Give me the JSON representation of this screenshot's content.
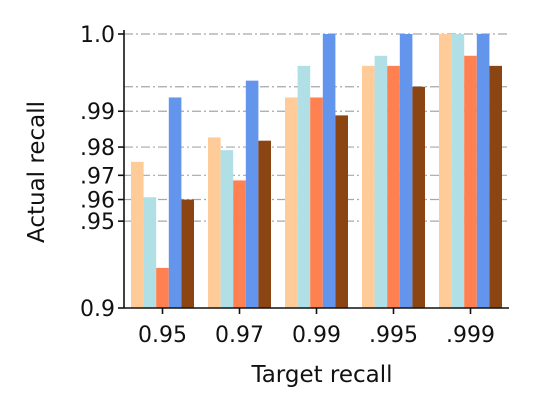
{
  "chart_data": {
    "type": "bar",
    "title": "",
    "xlabel": "Target recall",
    "ylabel": "Actual recall",
    "categories": [
      ".95",
      ".97",
      ".99",
      ".995",
      ".999"
    ],
    "category_labels": [
      "0.95",
      "0.97",
      "0.99",
      ".995",
      ".999"
    ],
    "ylim": [
      0.9,
      1.0
    ],
    "y_scale": "reciprocal-power",
    "y_ticks": [
      {
        "value": 0.9,
        "label": "0.9"
      },
      {
        "value": 0.95,
        "label": ".95"
      },
      {
        "value": 0.96,
        "label": ".96"
      },
      {
        "value": 0.97,
        "label": ".97"
      },
      {
        "value": 0.98,
        "label": ".98"
      },
      {
        "value": 0.99,
        "label": ".99"
      },
      {
        "value": 1.0,
        "label": "1.0"
      }
    ],
    "grid_lines": [
      0.95,
      0.96,
      0.97,
      0.98,
      0.99,
      0.995,
      1.0
    ],
    "grid": true,
    "legend": "none",
    "series": [
      {
        "color": "#FFCC99",
        "values": [
          0.975,
          0.983,
          0.993,
          0.998,
          1.0
        ]
      },
      {
        "color": "#B0E0E6",
        "values": [
          0.961,
          0.979,
          0.998,
          0.999,
          1.0
        ]
      },
      {
        "color": "#FF8050",
        "values": [
          0.925,
          0.968,
          0.993,
          0.998,
          0.999
        ]
      },
      {
        "color": "#6495ED",
        "values": [
          0.993,
          0.996,
          1.0,
          1.0,
          1.0
        ]
      },
      {
        "color": "#8B4513",
        "values": [
          0.96,
          0.982,
          0.989,
          0.995,
          0.998
        ]
      }
    ]
  }
}
